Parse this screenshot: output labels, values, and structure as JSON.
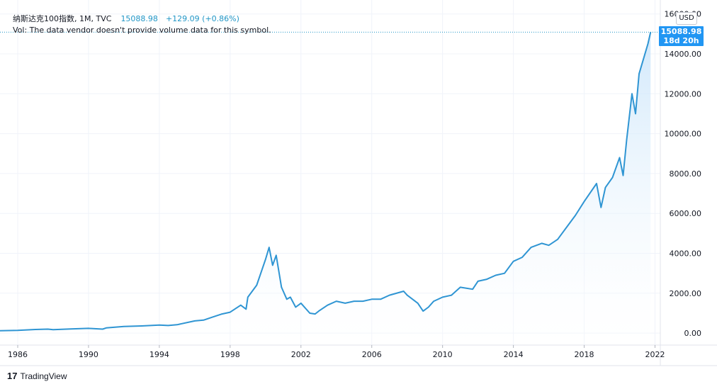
{
  "legend": {
    "symbol": "纳斯达克100指数",
    "interval": "1M",
    "source": "TVC",
    "last_price": "15088.98",
    "change": "+129.09",
    "change_pct": "(+0.86%)",
    "volume_notice": "Vol: The data vendor doesn't provide volume data for this symbol."
  },
  "price_scale": {
    "currency": "USD",
    "price_tag": "15088.98",
    "countdown": "18d 20h"
  },
  "branding": {
    "logo": "17",
    "name": "TradingView"
  },
  "colors": {
    "line": "#2f95d3",
    "area_top": "#c9e4fa",
    "area_bottom": "#ffffff",
    "price_tag": "#2196f3",
    "grid": "#f0f3fa"
  },
  "chart_data": {
    "type": "area",
    "ylim": [
      -600,
      16700
    ],
    "xlim": [
      1985.0,
      2022.3
    ],
    "y_ticks": [
      "0.00",
      "2000.00",
      "4000.00",
      "6000.00",
      "8000.00",
      "10000.00",
      "12000.00",
      "14000.00",
      "16000.00"
    ],
    "x_ticks": [
      "1986",
      "1990",
      "1994",
      "1998",
      "2002",
      "2006",
      "2010",
      "2014",
      "2018",
      "2022"
    ],
    "grid": true,
    "series": [
      {
        "x": [
          1985.0,
          1986.0,
          1987.0,
          1987.7,
          1988.0,
          1989.0,
          1990.0,
          1990.8,
          1991.0,
          1992.0,
          1993.0,
          1994.0,
          1994.5,
          1995.0,
          1996.0,
          1996.5,
          1997.0,
          1997.5,
          1998.0,
          1998.6,
          1998.9,
          1999.0,
          1999.5,
          2000.0,
          2000.2,
          2000.4,
          2000.6,
          2000.9,
          2001.2,
          2001.4,
          2001.7,
          2002.0,
          2002.5,
          2002.8,
          2003.0,
          2003.5,
          2004.0,
          2004.5,
          2005.0,
          2005.5,
          2006.0,
          2006.5,
          2007.0,
          2007.8,
          2008.0,
          2008.6,
          2008.9,
          2009.2,
          2009.5,
          2010.0,
          2010.5,
          2011.0,
          2011.7,
          2012.0,
          2012.5,
          2013.0,
          2013.5,
          2014.0,
          2014.5,
          2015.0,
          2015.6,
          2016.0,
          2016.5,
          2017.0,
          2017.5,
          2018.0,
          2018.7,
          2018.95,
          2019.2,
          2019.6,
          2020.0,
          2020.2,
          2020.4,
          2020.7,
          2020.9,
          2021.1,
          2021.4,
          2021.6,
          2021.75
        ],
        "values": [
          120,
          140,
          180,
          200,
          170,
          210,
          240,
          200,
          260,
          330,
          360,
          400,
          380,
          420,
          610,
          650,
          800,
          950,
          1050,
          1400,
          1200,
          1800,
          2400,
          3700,
          4300,
          3400,
          3900,
          2300,
          1700,
          1800,
          1300,
          1500,
          1000,
          960,
          1100,
          1400,
          1600,
          1500,
          1600,
          1600,
          1700,
          1700,
          1900,
          2100,
          1900,
          1500,
          1100,
          1300,
          1600,
          1800,
          1900,
          2300,
          2200,
          2600,
          2700,
          2900,
          3000,
          3600,
          3800,
          4300,
          4500,
          4400,
          4700,
          5300,
          5900,
          6600,
          7500,
          6300,
          7300,
          7800,
          8800,
          7900,
          9700,
          12000,
          11000,
          13000,
          13900,
          14500,
          15088.98
        ]
      }
    ]
  }
}
